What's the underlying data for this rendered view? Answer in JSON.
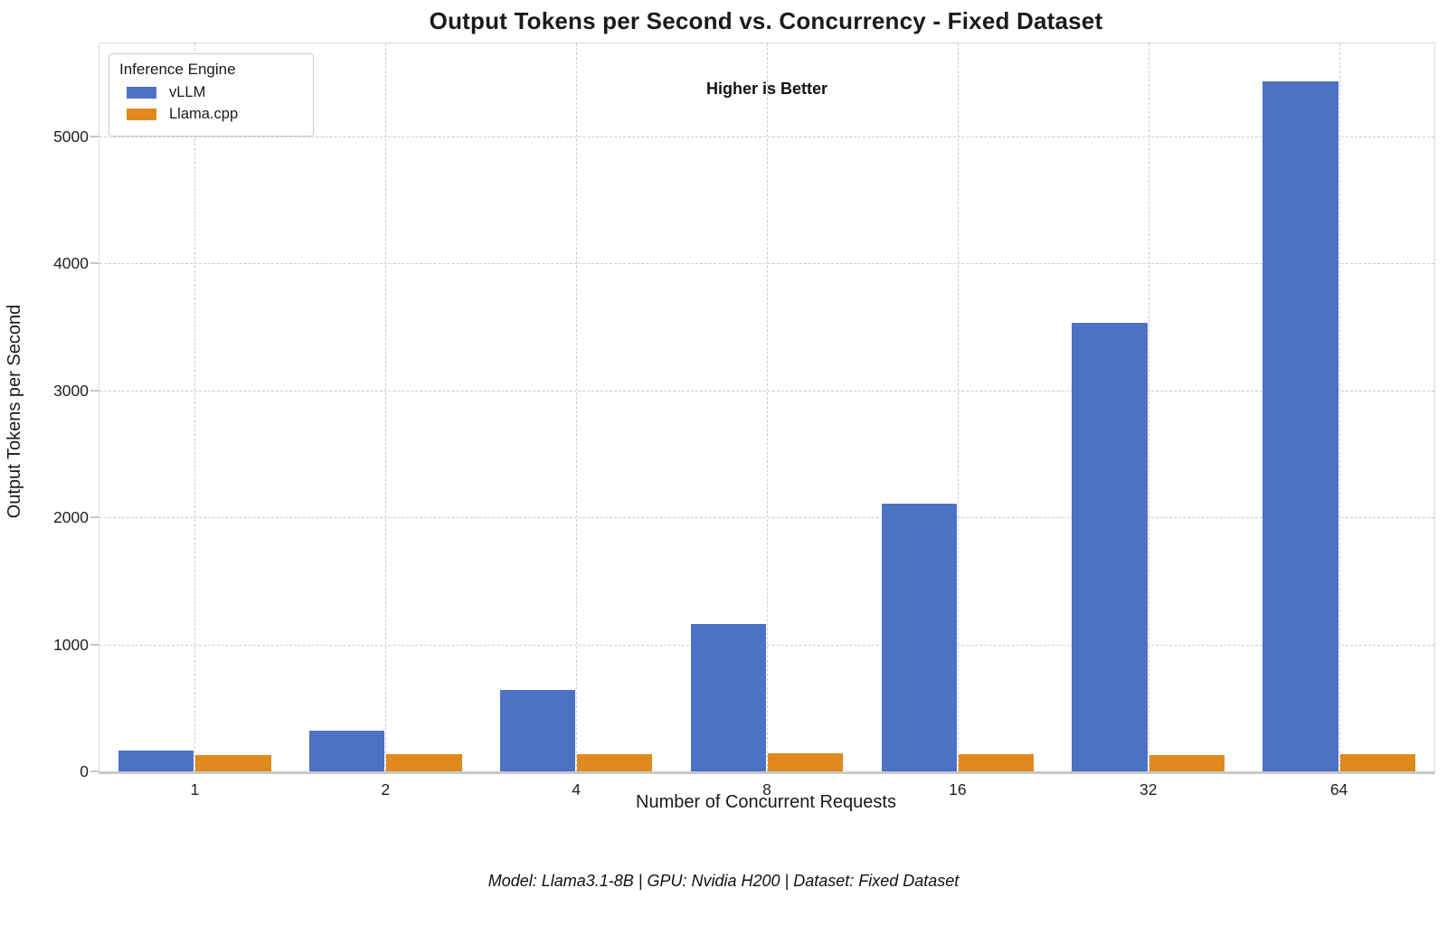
{
  "title": "Output Tokens per Second vs. Concurrency - Fixed Dataset",
  "annotation": "Higher is Better",
  "footer": "Model: Llama3.1-8B | GPU: Nvidia H200 | Dataset: Fixed Dataset",
  "legend": {
    "title": "Inference Engine",
    "entries": [
      {
        "label": "vLLM",
        "color": "#4d72c5"
      },
      {
        "label": "Llama.cpp",
        "color": "#e0891e"
      }
    ]
  },
  "chart_data": {
    "type": "bar",
    "title": "Output Tokens per Second vs. Concurrency - Fixed Dataset",
    "xlabel": "Number of Concurrent Requests",
    "ylabel": "Output Tokens per Second",
    "categories": [
      "1",
      "2",
      "4",
      "8",
      "16",
      "32",
      "64"
    ],
    "series": [
      {
        "name": "vLLM",
        "color": "#4d72c5",
        "values": [
          165,
          320,
          640,
          1160,
          2110,
          3530,
          5430
        ]
      },
      {
        "name": "Llama.cpp",
        "color": "#e0891e",
        "values": [
          130,
          137,
          136,
          141,
          136,
          131,
          135
        ]
      }
    ],
    "yticks": [
      0,
      1000,
      2000,
      3000,
      4000,
      5000
    ],
    "ylim": [
      0,
      5730
    ],
    "grid": true,
    "grid_style": "dashed",
    "legend_position": "upper left",
    "annotation": "Higher is Better",
    "higher_is_better": true
  }
}
